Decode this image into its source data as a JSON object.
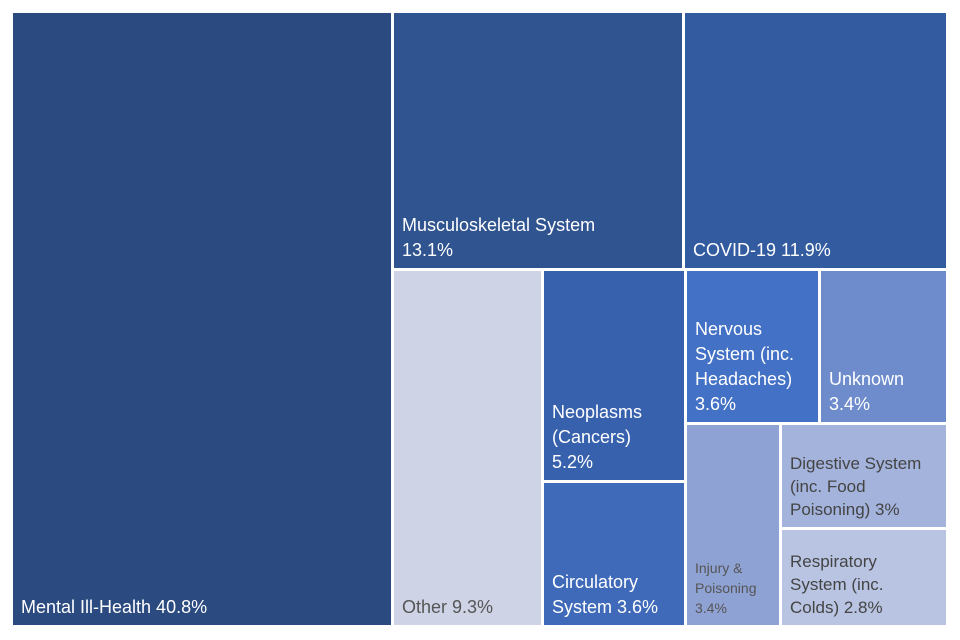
{
  "chart_data": {
    "type": "treemap",
    "title": "",
    "tiles": [
      {
        "label_lines": [
          "Mental Ill-Health 40.8%"
        ],
        "value": 40.8,
        "color": "#2a4a80",
        "text_color": "#ffffff"
      },
      {
        "label_lines": [
          "Musculoskeletal System",
          "13.1%"
        ],
        "value": 13.1,
        "color": "#30548f",
        "text_color": "#ffffff"
      },
      {
        "label_lines": [
          "COVID-19 11.9%"
        ],
        "value": 11.9,
        "color": "#335ca0",
        "text_color": "#ffffff"
      },
      {
        "label_lines": [
          "Other 9.3%"
        ],
        "value": 9.3,
        "color": "#cfd3e6",
        "text_color": "#555555"
      },
      {
        "label_lines": [
          "Neoplasms",
          "(Cancers)",
          "5.2%"
        ],
        "value": 5.2,
        "color": "#3761ad",
        "text_color": "#ffffff"
      },
      {
        "label_lines": [
          "Circulatory",
          "System 3.6%"
        ],
        "value": 3.6,
        "color": "#3f6ab9",
        "text_color": "#ffffff"
      },
      {
        "label_lines": [
          "Nervous",
          "System (inc.",
          "Headaches)",
          "3.6%"
        ],
        "value": 3.6,
        "color": "#4371c6",
        "text_color": "#ffffff"
      },
      {
        "label_lines": [
          "Unknown",
          "3.4%"
        ],
        "value": 3.4,
        "color": "#6e8ccc",
        "text_color": "#ffffff"
      },
      {
        "label_lines": [
          "Injury &",
          "Poisoning",
          "3.4%"
        ],
        "value": 3.4,
        "color": "#8fa2d4",
        "text_color": "#555555"
      },
      {
        "label_lines": [
          "Digestive System",
          "(inc. Food",
          "Poisoning) 3%"
        ],
        "value": 3.0,
        "color": "#a3b3dc",
        "text_color": "#444444"
      },
      {
        "label_lines": [
          "Respiratory",
          "System (inc.",
          "Colds) 2.8%"
        ],
        "value": 2.8,
        "color": "#b9c4e3",
        "text_color": "#444444"
      }
    ]
  }
}
